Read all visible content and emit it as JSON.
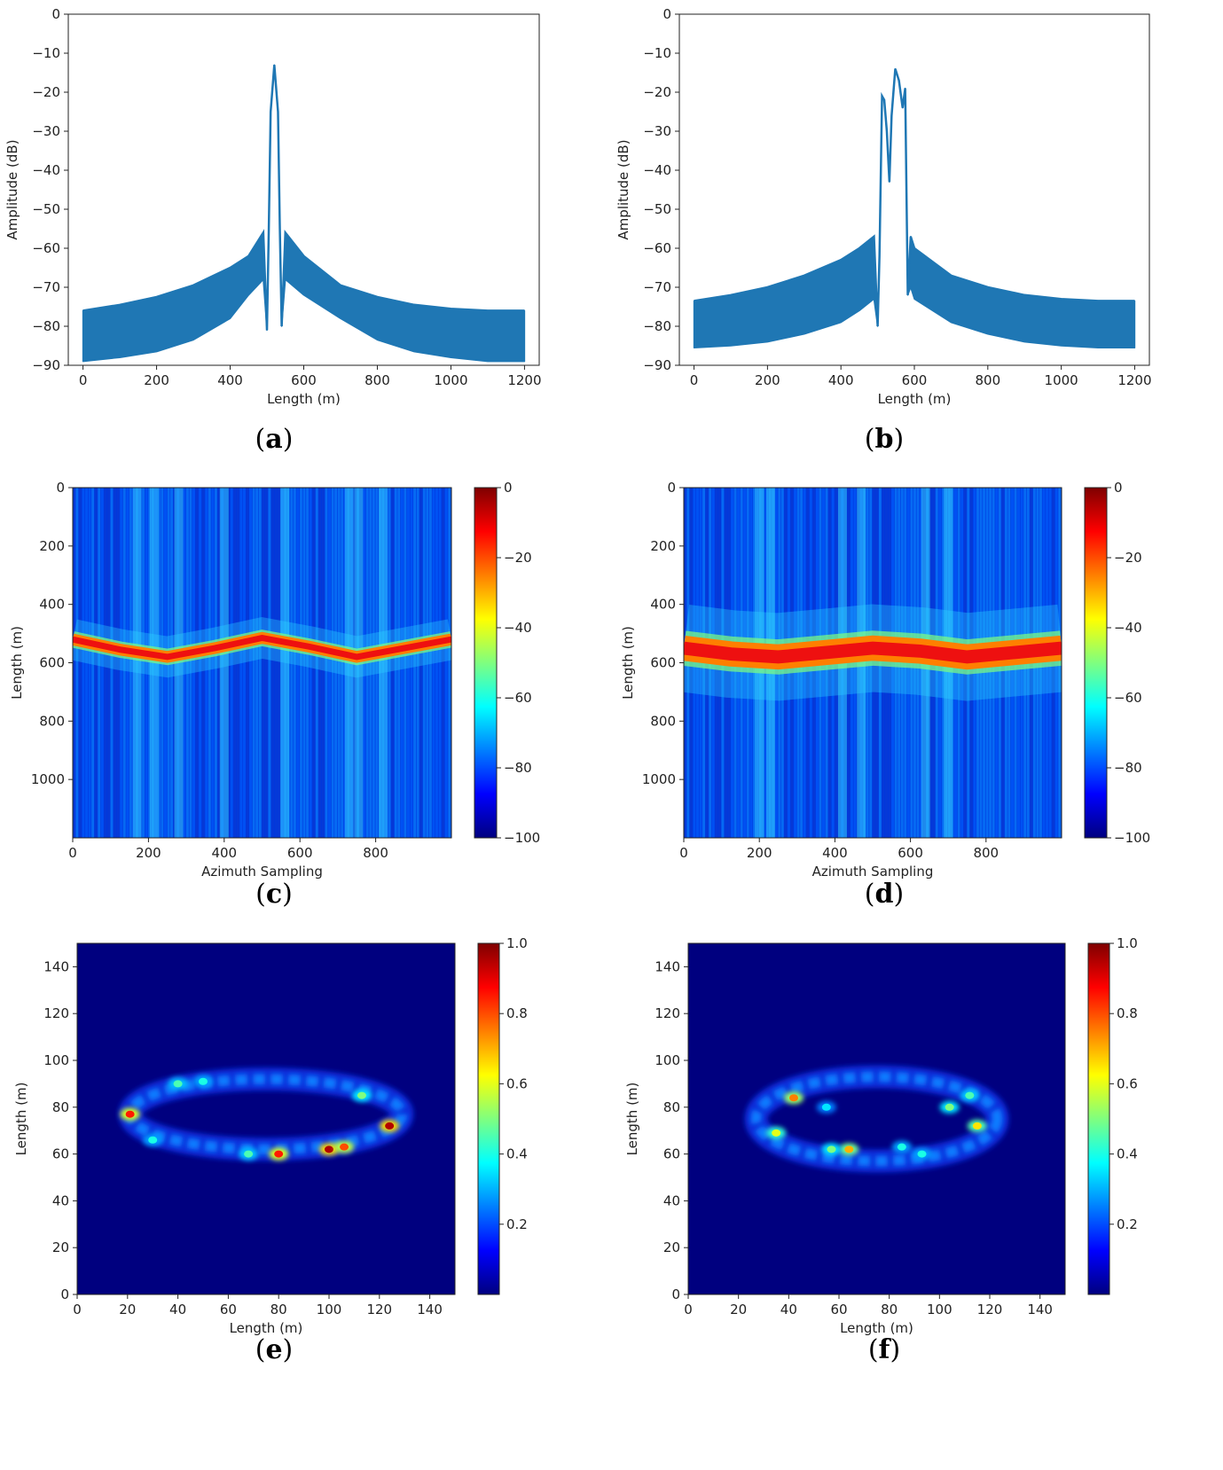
{
  "figure_title": "",
  "colors": {
    "line": "#1f77b4",
    "axis": "#222222",
    "jet": [
      "#00007f",
      "#0000ff",
      "#007fff",
      "#00ffff",
      "#7fff7f",
      "#ffff00",
      "#ff7f00",
      "#ff0000",
      "#7f0000"
    ]
  },
  "chart_data": [
    {
      "id": "a",
      "panel_label": "a",
      "type": "line",
      "xlabel": "Length (m)",
      "ylabel": "Amplitude (dB)",
      "xlim": [
        -40,
        1240
      ],
      "ylim": [
        -90,
        0
      ],
      "xticks": [
        0,
        200,
        400,
        600,
        800,
        1000,
        1200
      ],
      "yticks": [
        0,
        -10,
        -20,
        -30,
        -40,
        -50,
        -60,
        -70,
        -80,
        -90
      ],
      "envelope": {
        "x": [
          0,
          100,
          200,
          300,
          400,
          450,
          490,
          500,
          505,
          510,
          520,
          530,
          535,
          540,
          550,
          600,
          700,
          800,
          900,
          1000,
          1100,
          1200
        ],
        "upper": [
          -76,
          -74.5,
          -72.5,
          -69.5,
          -65,
          -62,
          -56,
          -81,
          -55,
          -25,
          -13,
          -25,
          -55,
          -80,
          -56,
          -62,
          -69.5,
          -72.5,
          -74.5,
          -75.5,
          -76,
          -76
        ],
        "lower": [
          -89,
          -88,
          -86.5,
          -83.5,
          -78,
          -72,
          -68,
          -81,
          -55,
          -25,
          -13,
          -25,
          -55,
          -80,
          -68,
          -72,
          -78,
          -83.5,
          -86.5,
          -88,
          -89,
          -89
        ]
      }
    },
    {
      "id": "b",
      "panel_label": "b",
      "type": "line",
      "xlabel": "Length (m)",
      "ylabel": "Amplitude (dB)",
      "xlim": [
        -40,
        1240
      ],
      "ylim": [
        -90,
        0
      ],
      "xticks": [
        0,
        200,
        400,
        600,
        800,
        1000,
        1200
      ],
      "yticks": [
        0,
        -10,
        -20,
        -30,
        -40,
        -50,
        -60,
        -70,
        -80,
        -90
      ],
      "envelope": {
        "x": [
          0,
          100,
          200,
          300,
          400,
          450,
          490,
          500,
          505,
          512,
          518,
          525,
          532,
          538,
          548,
          558,
          568,
          575,
          582,
          590,
          600,
          700,
          800,
          900,
          1000,
          1100,
          1200
        ],
        "upper": [
          -73.5,
          -72,
          -70,
          -67,
          -63,
          -60,
          -57,
          -80,
          -62,
          -21,
          -22,
          -30,
          -43,
          -26,
          -14,
          -17,
          -24,
          -19,
          -72,
          -57,
          -60,
          -67,
          -70,
          -72,
          -73,
          -73.5,
          -73.5
        ],
        "lower": [
          -85.5,
          -85,
          -84,
          -82,
          -79,
          -76,
          -73,
          -80,
          -62,
          -21,
          -22,
          -30,
          -43,
          -26,
          -14,
          -17,
          -24,
          -19,
          -72,
          -70,
          -73,
          -79,
          -82,
          -84,
          -85,
          -85.5,
          -85.5
        ]
      }
    },
    {
      "id": "c",
      "panel_label": "c",
      "type": "heatmap",
      "xlabel": "Azimuth Sampling",
      "ylabel": "Length (m)",
      "xlim": [
        0,
        1000
      ],
      "ylim": [
        1200,
        0
      ],
      "xticks": [
        0,
        200,
        400,
        600,
        800
      ],
      "yticks": [
        0,
        200,
        400,
        600,
        800,
        1000
      ],
      "colorbar": {
        "range": [
          -100,
          0
        ],
        "ticks": [
          0,
          -20,
          -40,
          -60,
          -80,
          -100
        ],
        "tick_labels": [
          "0",
          "−20",
          "−40",
          "−60",
          "−80",
          "−100"
        ]
      },
      "track": {
        "x": [
          0,
          125,
          250,
          375,
          500,
          625,
          750,
          875,
          1000
        ],
        "y": [
          520,
          555,
          580,
          550,
          515,
          545,
          580,
          550,
          520
        ],
        "width_m": 35
      },
      "bright_columns": [
        170,
        215,
        280,
        400,
        560,
        730,
        755,
        820
      ]
    },
    {
      "id": "d",
      "panel_label": "d",
      "type": "heatmap",
      "xlabel": "Azimuth Sampling",
      "ylabel": "Length (m)",
      "xlim": [
        0,
        1000
      ],
      "ylim": [
        1200,
        0
      ],
      "xticks": [
        0,
        200,
        400,
        600,
        800
      ],
      "yticks": [
        0,
        200,
        400,
        600,
        800,
        1000
      ],
      "colorbar": {
        "range": [
          -100,
          0
        ],
        "ticks": [
          0,
          -20,
          -40,
          -60,
          -80,
          -100
        ],
        "tick_labels": [
          "0",
          "−20",
          "−40",
          "−60",
          "−80",
          "−100"
        ]
      },
      "track": {
        "x": [
          0,
          125,
          250,
          375,
          500,
          625,
          750,
          875,
          1000
        ],
        "y": [
          550,
          570,
          580,
          565,
          550,
          560,
          580,
          565,
          550
        ],
        "width_m": 75
      },
      "bright_columns": [
        200,
        230,
        420,
        470,
        640,
        700
      ]
    },
    {
      "id": "e",
      "panel_label": "e",
      "type": "heatmap",
      "xlabel": "Length (m)",
      "ylabel": "Length (m)",
      "xlim": [
        0,
        150
      ],
      "ylim": [
        0,
        150
      ],
      "xticks": [
        0,
        20,
        40,
        60,
        80,
        100,
        120,
        140
      ],
      "yticks": [
        0,
        20,
        40,
        60,
        80,
        100,
        120,
        140
      ],
      "colorbar": {
        "range": [
          0,
          1
        ],
        "ticks": [
          1.0,
          0.8,
          0.6,
          0.4,
          0.2
        ],
        "tick_labels": [
          "1.0",
          "0.8",
          "0.6",
          "0.4",
          "0.2"
        ]
      },
      "ring": {
        "center": [
          75,
          77
        ],
        "radius_x": 54,
        "radius_y": 15
      },
      "hotspots": [
        {
          "x": 21,
          "y": 77,
          "v": 0.85
        },
        {
          "x": 40,
          "y": 90,
          "v": 0.45
        },
        {
          "x": 50,
          "y": 91,
          "v": 0.4
        },
        {
          "x": 80,
          "y": 60,
          "v": 0.85
        },
        {
          "x": 100,
          "y": 62,
          "v": 0.95
        },
        {
          "x": 106,
          "y": 63,
          "v": 0.8
        },
        {
          "x": 124,
          "y": 72,
          "v": 0.95
        },
        {
          "x": 113,
          "y": 85,
          "v": 0.5
        },
        {
          "x": 30,
          "y": 66,
          "v": 0.4
        },
        {
          "x": 68,
          "y": 60,
          "v": 0.45
        }
      ]
    },
    {
      "id": "f",
      "panel_label": "f",
      "type": "heatmap",
      "xlabel": "Length (m)",
      "ylabel": "Length (m)",
      "xlim": [
        0,
        150
      ],
      "ylim": [
        0,
        150
      ],
      "xticks": [
        0,
        20,
        40,
        60,
        80,
        100,
        120,
        140
      ],
      "yticks": [
        0,
        20,
        40,
        60,
        80,
        100,
        120,
        140
      ],
      "colorbar": {
        "range": [
          0,
          1
        ],
        "ticks": [
          1.0,
          0.8,
          0.6,
          0.4,
          0.2
        ],
        "tick_labels": [
          "1.0",
          "0.8",
          "0.6",
          "0.4",
          "0.2"
        ]
      },
      "ring": {
        "center": [
          75,
          75
        ],
        "radius_x": 48,
        "radius_y": 18
      },
      "hotspots": [
        {
          "x": 42,
          "y": 84,
          "v": 0.75
        },
        {
          "x": 35,
          "y": 69,
          "v": 0.6
        },
        {
          "x": 64,
          "y": 62,
          "v": 0.7
        },
        {
          "x": 57,
          "y": 62,
          "v": 0.5
        },
        {
          "x": 104,
          "y": 80,
          "v": 0.5
        },
        {
          "x": 115,
          "y": 72,
          "v": 0.65
        },
        {
          "x": 112,
          "y": 85,
          "v": 0.45
        },
        {
          "x": 85,
          "y": 63,
          "v": 0.4
        },
        {
          "x": 93,
          "y": 60,
          "v": 0.4
        },
        {
          "x": 55,
          "y": 80,
          "v": 0.35
        }
      ]
    }
  ]
}
